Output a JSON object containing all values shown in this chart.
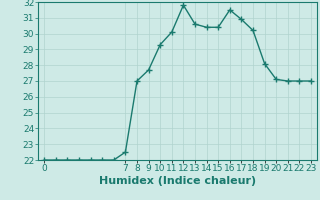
{
  "x": [
    0,
    1,
    2,
    3,
    4,
    5,
    6,
    7,
    8,
    9,
    10,
    11,
    12,
    13,
    14,
    15,
    16,
    17,
    18,
    19,
    20,
    21,
    22,
    23
  ],
  "y": [
    22.0,
    22.0,
    22.0,
    22.0,
    22.0,
    22.0,
    22.0,
    22.5,
    27.0,
    27.7,
    29.3,
    30.1,
    31.8,
    30.6,
    30.4,
    30.4,
    31.5,
    30.9,
    30.2,
    28.1,
    27.1,
    27.0,
    27.0,
    27.0
  ],
  "line_color": "#1a7a6e",
  "marker": "+",
  "marker_size": 4,
  "bg_color": "#ceeae6",
  "grid_color": "#b0d4ce",
  "xlabel": "Humidex (Indice chaleur)",
  "xlabel_fontsize": 8,
  "xlim": [
    -0.5,
    23.5
  ],
  "ylim": [
    22,
    32
  ],
  "yticks": [
    22,
    23,
    24,
    25,
    26,
    27,
    28,
    29,
    30,
    31,
    32
  ],
  "xtick_positions": [
    0,
    7,
    8,
    9,
    10,
    11,
    12,
    13,
    14,
    15,
    16,
    17,
    18,
    19,
    20,
    21,
    22,
    23
  ],
  "xtick_labels": [
    "0",
    "7",
    "8",
    "9",
    "10",
    "11",
    "12",
    "13",
    "14",
    "15",
    "16",
    "17",
    "18",
    "19",
    "20",
    "21",
    "22",
    "23"
  ],
  "tick_color": "#1a7a6e",
  "tick_fontsize": 6.5,
  "line_width": 1.0
}
